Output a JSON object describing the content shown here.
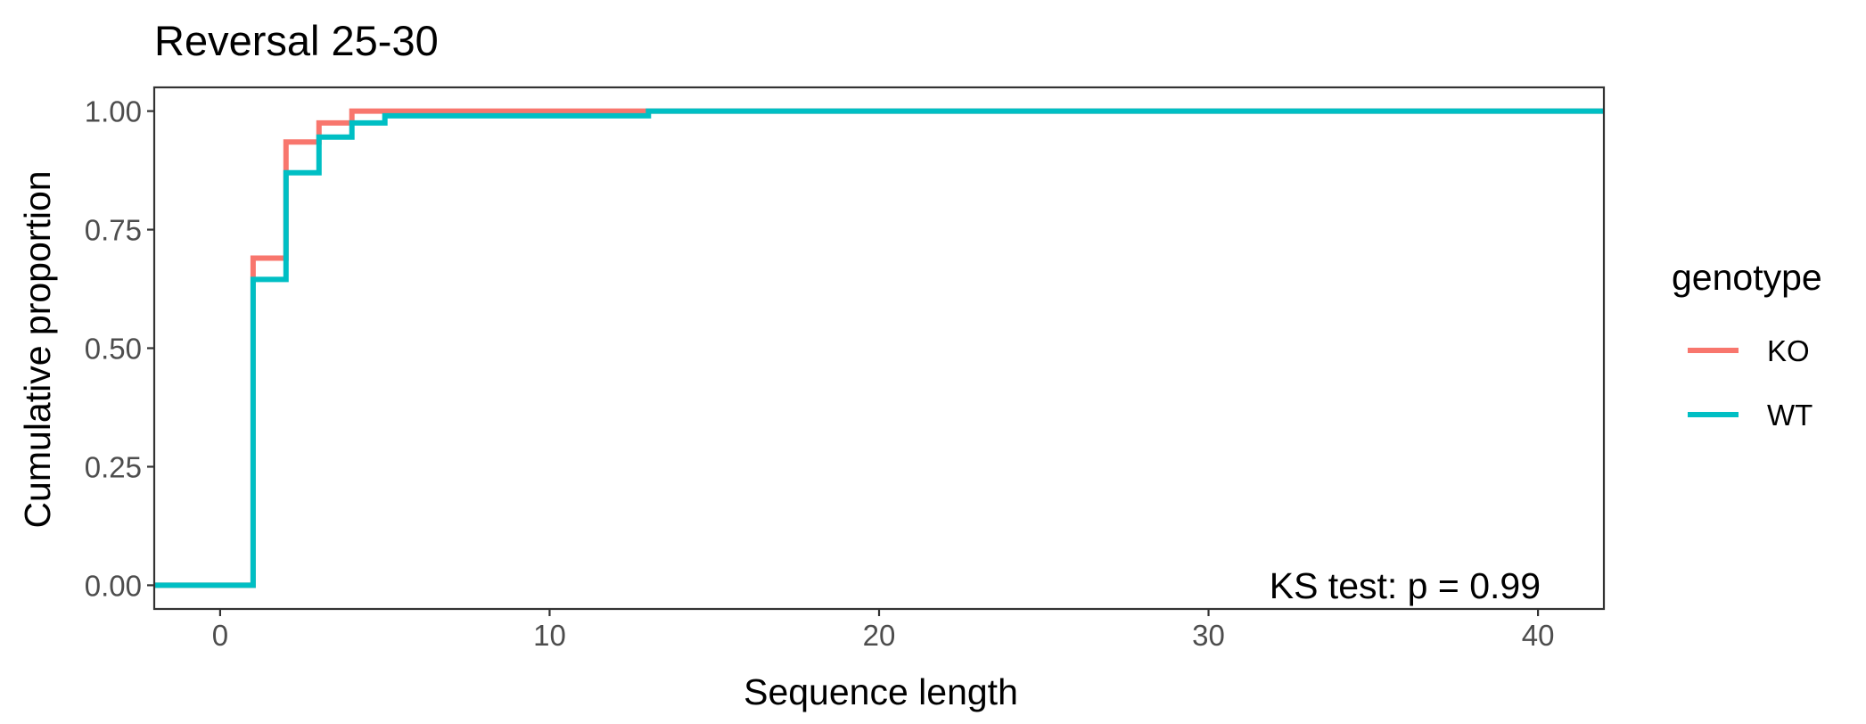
{
  "chart_data": {
    "type": "line",
    "step": true,
    "title": "Reversal 25-30",
    "xlabel": "Sequence length",
    "ylabel": "Cumulative proportion",
    "xlim": [
      -2,
      42
    ],
    "ylim": [
      -0.05,
      1.05
    ],
    "x_ticks": [
      0,
      10,
      20,
      30,
      40
    ],
    "x_tick_labels": [
      "0",
      "10",
      "20",
      "30",
      "40"
    ],
    "y_ticks": [
      0,
      0.25,
      0.5,
      0.75,
      1.0
    ],
    "y_tick_labels": [
      "0.00",
      "0.25",
      "0.50",
      "0.75",
      "1.00"
    ],
    "grid": false,
    "legend": {
      "title": "genotype",
      "position": "right"
    },
    "annotation": "KS test: p = 0.99",
    "series": [
      {
        "name": "KO",
        "color": "#F8766D",
        "x": [
          -2,
          1,
          1,
          2,
          2,
          3,
          3,
          4,
          4,
          42
        ],
        "y": [
          0,
          0,
          0.69,
          0.69,
          0.935,
          0.935,
          0.975,
          0.975,
          1.0,
          1.0
        ]
      },
      {
        "name": "WT",
        "color": "#00BFC4",
        "x": [
          -2,
          1,
          1,
          2,
          2,
          3,
          3,
          4,
          4,
          5,
          5,
          13,
          13,
          42
        ],
        "y": [
          0,
          0,
          0.645,
          0.645,
          0.87,
          0.87,
          0.945,
          0.945,
          0.975,
          0.975,
          0.99,
          0.99,
          1.0,
          1.0
        ]
      }
    ]
  }
}
